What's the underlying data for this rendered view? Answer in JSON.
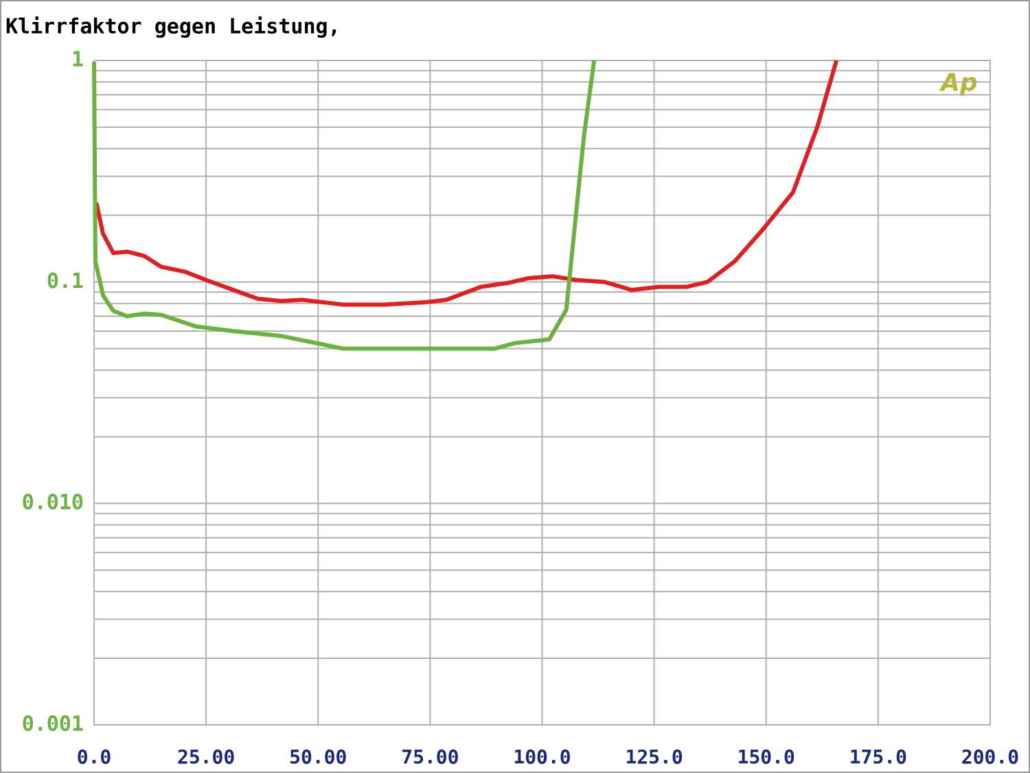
{
  "chart_data": {
    "type": "line",
    "title": "Klirrfaktor gegen Leistung,",
    "logo": "Ap",
    "log_y": true,
    "grid": true,
    "minor_grid": true,
    "xlim": [
      0,
      200
    ],
    "xticks": [
      {
        "value": 0,
        "label": "0.0"
      },
      {
        "value": 25,
        "label": "25.00"
      },
      {
        "value": 50,
        "label": "50.00"
      },
      {
        "value": 75,
        "label": "75.00"
      },
      {
        "value": 100,
        "label": "100.0"
      },
      {
        "value": 125,
        "label": "125.0"
      },
      {
        "value": 150,
        "label": "150.0"
      },
      {
        "value": 175,
        "label": "175.0"
      },
      {
        "value": 200,
        "label": "200.0"
      }
    ],
    "ylim": [
      0.001,
      1
    ],
    "yticks": [
      {
        "value": 0.001,
        "label": "0.001"
      },
      {
        "value": 0.01,
        "label": "0.010"
      },
      0.1,
      1
    ],
    "series": [
      {
        "color": "#e02020",
        "x": [
          0.5,
          2.0,
          4.3,
          7.4,
          11.2,
          15,
          20.4,
          25,
          31.1,
          36.5,
          41.8,
          46.4,
          55.6,
          64.8,
          74,
          78.6,
          86.3,
          92.4,
          97,
          102.4,
          107.7,
          113.9,
          120,
          126.1,
          132.3,
          136.9,
          143,
          149.1,
          156,
          161.4,
          165.7
        ],
        "values": [
          0.228,
          0.165,
          0.135,
          0.137,
          0.131,
          0.117,
          0.111,
          0.102,
          0.092,
          0.084,
          0.082,
          0.083,
          0.079,
          0.079,
          0.081,
          0.083,
          0.095,
          0.099,
          0.104,
          0.106,
          0.102,
          0.1,
          0.092,
          0.095,
          0.095,
          0.1,
          0.124,
          0.171,
          0.254,
          0.5,
          1.0
        ]
      },
      {
        "color": "#6ab33e",
        "x": [
          0,
          0.3,
          2,
          4.3,
          7.4,
          11.2,
          15,
          22.7,
          31.1,
          41.8,
          55.6,
          71,
          78.6,
          89.4,
          94,
          101.6,
          105.4,
          109.3,
          111.6
        ],
        "values": [
          0.986,
          0.124,
          0.087,
          0.074,
          0.07,
          0.072,
          0.071,
          0.063,
          0.06,
          0.057,
          0.05,
          0.05,
          0.05,
          0.05,
          0.053,
          0.055,
          0.075,
          0.45,
          1.0
        ]
      }
    ]
  }
}
